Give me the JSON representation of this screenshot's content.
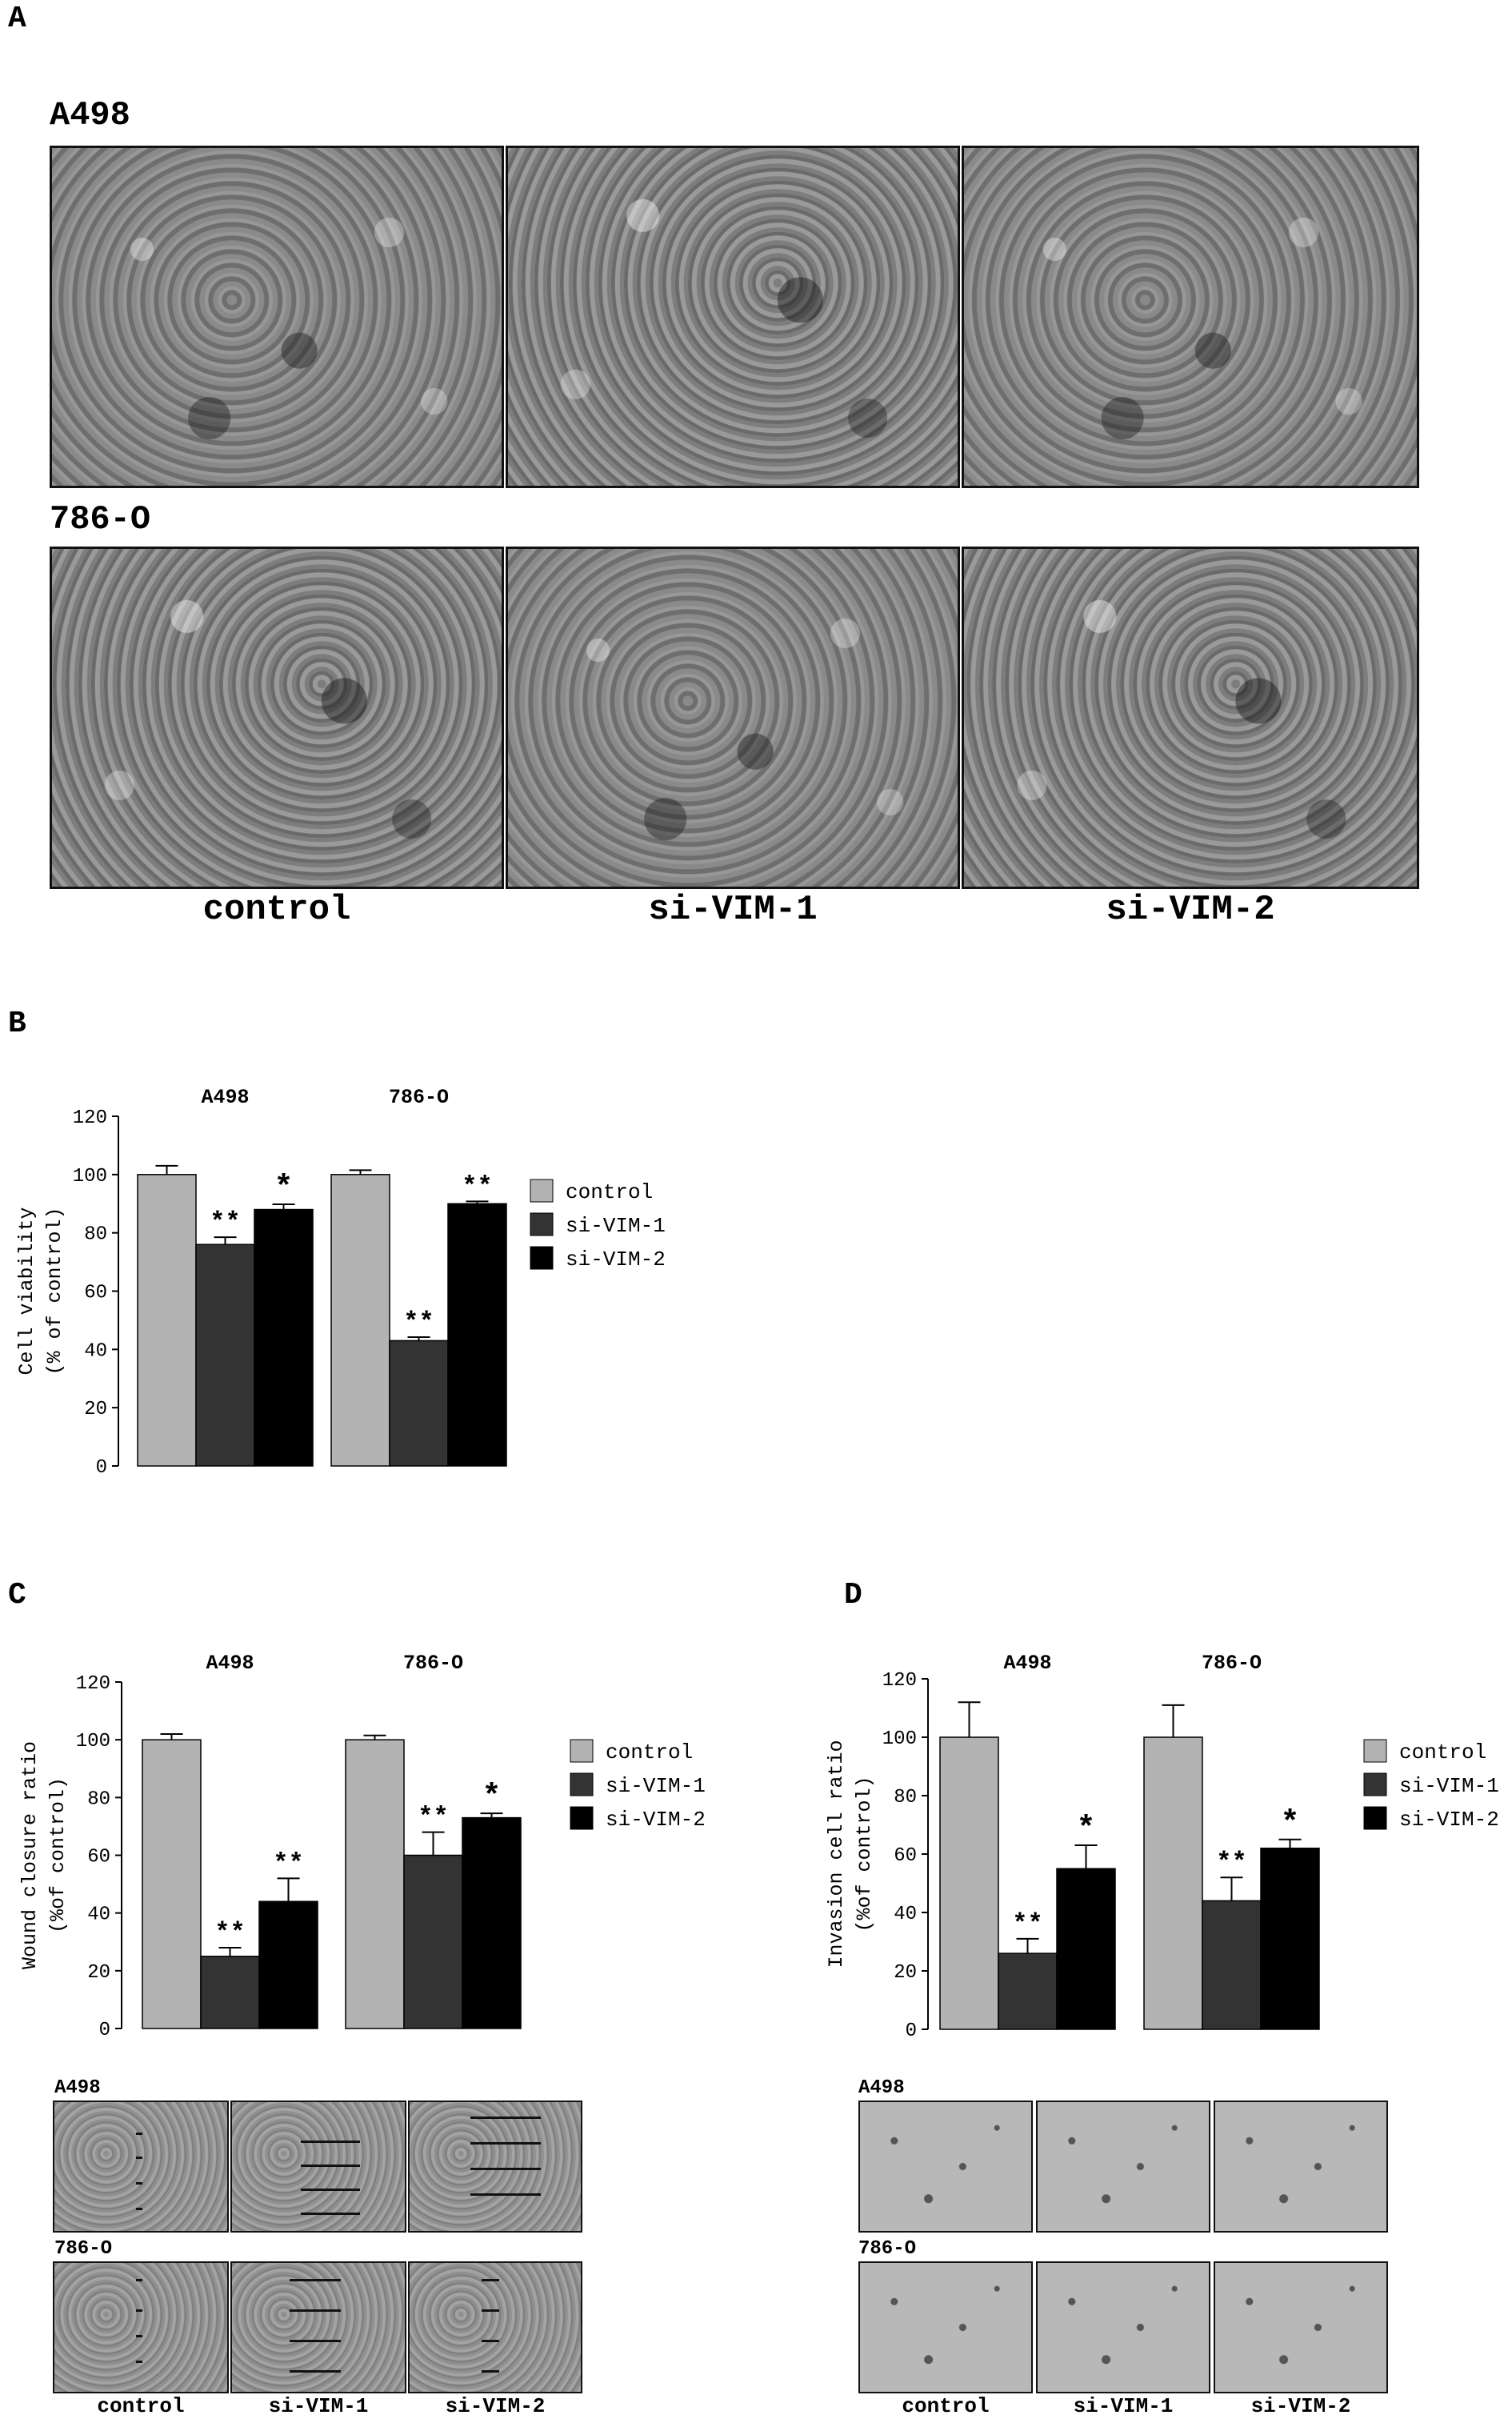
{
  "panels": {
    "a_letter": "A",
    "b_letter": "B",
    "c_letter": "C",
    "d_letter": "D"
  },
  "panel_a": {
    "row_labels": [
      "A498",
      "786-O"
    ],
    "col_labels": [
      "control",
      "si-VIM-1",
      "si-VIM-2"
    ]
  },
  "panel_c_images": {
    "row_labels": [
      "A498",
      "786-O"
    ],
    "col_labels": [
      "control",
      "si-VIM-1",
      "si-VIM-2"
    ]
  },
  "panel_d_images": {
    "row_labels": [
      "A498",
      "786-O"
    ],
    "col_labels": [
      "control",
      "si-VIM-1",
      "si-VIM-2"
    ]
  },
  "colors": {
    "control": "#b3b3b3",
    "si-VIM-1": "#333333",
    "si-VIM-2": "#000000"
  },
  "chart_data": [
    {
      "id": "B",
      "type": "bar",
      "groups": [
        "A498",
        "786-O"
      ],
      "ylabel": [
        "Cell viability",
        "(% of control)"
      ],
      "ylim": [
        0,
        120
      ],
      "yticks": [
        "0",
        "20",
        "40",
        "60",
        "80",
        "100",
        "120"
      ],
      "legend": [
        "control",
        "si-VIM-1",
        "si-VIM-2"
      ],
      "legend_position": "right",
      "series": [
        {
          "name": "control",
          "values": [
            100,
            100
          ],
          "errors": [
            3,
            1.5
          ],
          "sig": [
            "",
            ""
          ]
        },
        {
          "name": "si-VIM-1",
          "values": [
            76,
            43
          ],
          "errors": [
            2.5,
            1.2
          ],
          "sig": [
            "**",
            "**"
          ]
        },
        {
          "name": "si-VIM-2",
          "values": [
            88,
            90
          ],
          "errors": [
            1.8,
            0.8
          ],
          "sig": [
            "*",
            "**"
          ]
        }
      ]
    },
    {
      "id": "C",
      "type": "bar",
      "groups": [
        "A498",
        "786-O"
      ],
      "ylabel": [
        "Wound closure ratio",
        "(%of control)"
      ],
      "ylim": [
        0,
        120
      ],
      "yticks": [
        "0",
        "20",
        "40",
        "60",
        "80",
        "100",
        "120"
      ],
      "legend": [
        "control",
        "si-VIM-1",
        "si-VIM-2"
      ],
      "legend_position": "right",
      "series": [
        {
          "name": "control",
          "values": [
            100,
            100
          ],
          "errors": [
            2,
            1.5
          ],
          "sig": [
            "",
            ""
          ]
        },
        {
          "name": "si-VIM-1",
          "values": [
            25,
            60
          ],
          "errors": [
            3,
            8
          ],
          "sig": [
            "**",
            "**"
          ]
        },
        {
          "name": "si-VIM-2",
          "values": [
            44,
            73
          ],
          "errors": [
            8,
            1.5
          ],
          "sig": [
            "**",
            "*"
          ]
        }
      ]
    },
    {
      "id": "D",
      "type": "bar",
      "groups": [
        "A498",
        "786-O"
      ],
      "ylabel": [
        "Invasion cell ratio",
        "(%of control)"
      ],
      "ylim": [
        0,
        120
      ],
      "yticks": [
        "0",
        "20",
        "40",
        "60",
        "80",
        "100",
        "120"
      ],
      "legend": [
        "control",
        "si-VIM-1",
        "si-VIM-2"
      ],
      "legend_position": "right",
      "series": [
        {
          "name": "control",
          "values": [
            100,
            100
          ],
          "errors": [
            12,
            11
          ],
          "sig": [
            "",
            ""
          ]
        },
        {
          "name": "si-VIM-1",
          "values": [
            26,
            44
          ],
          "errors": [
            5,
            8
          ],
          "sig": [
            "**",
            "**"
          ]
        },
        {
          "name": "si-VIM-2",
          "values": [
            55,
            62
          ],
          "errors": [
            8,
            3
          ],
          "sig": [
            "*",
            "*"
          ]
        }
      ]
    }
  ]
}
